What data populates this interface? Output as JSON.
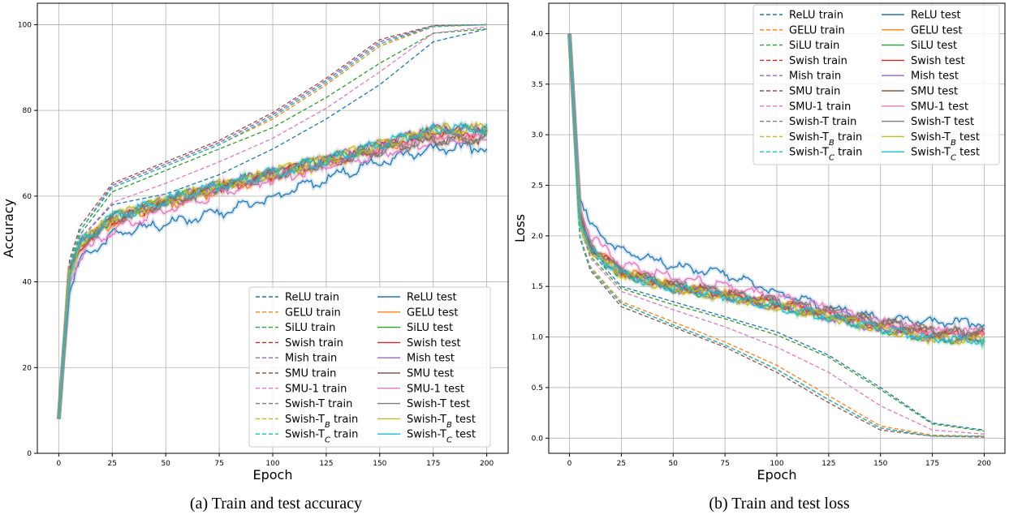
{
  "captions": {
    "a": "(a) Train and test accuracy",
    "b": "(b) Train and test loss"
  },
  "legend_labels": {
    "train": [
      "ReLU train",
      "GELU train",
      "SiLU train",
      "Swish train",
      "Mish train",
      "SMU train",
      "SMU-1 train",
      "Swish-T train",
      "Swish-T_B train",
      "Swish-T_C train"
    ],
    "test": [
      "ReLU test",
      "GELU test",
      "SiLU test",
      "Swish test",
      "Mish test",
      "SMU test",
      "SMU-1 test",
      "Swish-T test",
      "Swish-T_B test",
      "Swish-T_C test"
    ]
  },
  "colors": [
    "#1f77b4",
    "#ff7f0e",
    "#2ca02c",
    "#d62728",
    "#9467bd",
    "#8c564b",
    "#e377c2",
    "#7f7f7f",
    "#bcbd22",
    "#17becf"
  ],
  "chart_data": [
    {
      "type": "line",
      "xlabel": "Epoch",
      "ylabel": "Accuracy",
      "xlim": [
        -10,
        210
      ],
      "ylim": [
        0,
        105
      ],
      "xticks": [
        0,
        25,
        50,
        75,
        100,
        125,
        150,
        175,
        200
      ],
      "yticks": [
        0,
        20,
        40,
        60,
        80,
        100
      ],
      "grid": true,
      "legend": "lower-right",
      "series_x": [
        0,
        5,
        10,
        25,
        50,
        75,
        100,
        125,
        150,
        175,
        200
      ],
      "series": [
        {
          "name": "ReLU train",
          "style": "dashed",
          "values": [
            8,
            42,
            50,
            58,
            60.5,
            65,
            71,
            78,
            86,
            96,
            99
          ]
        },
        {
          "name": "GELU train",
          "style": "dashed",
          "values": [
            8,
            44,
            52,
            62,
            67,
            72,
            78,
            86,
            95,
            99.5,
            100
          ]
        },
        {
          "name": "SiLU train",
          "style": "dashed",
          "values": [
            8,
            43,
            51,
            61,
            66,
            71,
            76,
            83,
            91,
            98,
            99
          ]
        },
        {
          "name": "Swish train",
          "style": "dashed",
          "values": [
            8,
            44,
            52,
            62.5,
            67.5,
            72.5,
            79,
            87,
            96,
            99.7,
            100
          ]
        },
        {
          "name": "Mish train",
          "style": "dashed",
          "values": [
            8,
            44,
            52,
            62.5,
            67.5,
            72.5,
            79,
            87,
            96,
            99.7,
            100
          ]
        },
        {
          "name": "SMU train",
          "style": "dashed",
          "values": [
            8,
            45,
            53,
            63,
            68,
            73,
            79.5,
            87.5,
            96.5,
            99.8,
            100
          ]
        },
        {
          "name": "SMU-1 train",
          "style": "dashed",
          "values": [
            8,
            42,
            50,
            58.5,
            63,
            68,
            73.5,
            80.5,
            89,
            98,
            99.5
          ]
        },
        {
          "name": "Swish-T train",
          "style": "dashed",
          "values": [
            8,
            44,
            52,
            62,
            67,
            72,
            78.5,
            86.5,
            95.5,
            99.6,
            100
          ]
        },
        {
          "name": "Swish-T_B train",
          "style": "dashed",
          "values": [
            8,
            44,
            52,
            62,
            67,
            72,
            78.5,
            86.5,
            95.5,
            99.6,
            100
          ]
        },
        {
          "name": "Swish-T_C train",
          "style": "dashed",
          "values": [
            8,
            44,
            52,
            62,
            67,
            72,
            78.5,
            86.5,
            95.5,
            99.6,
            100
          ]
        },
        {
          "name": "ReLU test",
          "style": "solid",
          "values": [
            8,
            38,
            45,
            51,
            53.5,
            56,
            60,
            64,
            68,
            71,
            71.5
          ]
        },
        {
          "name": "GELU test",
          "style": "solid",
          "values": [
            8,
            42,
            48,
            54,
            58,
            61.5,
            64.5,
            67.5,
            71,
            74,
            74.5
          ]
        },
        {
          "name": "SiLU test",
          "style": "solid",
          "values": [
            8,
            42,
            49,
            55,
            59,
            62.5,
            65.5,
            68.5,
            72,
            75.5,
            75.5
          ]
        },
        {
          "name": "Swish test",
          "style": "solid",
          "values": [
            8,
            42,
            48.5,
            54.5,
            58.5,
            62,
            65,
            68,
            71.5,
            75,
            75
          ]
        },
        {
          "name": "Mish test",
          "style": "solid",
          "values": [
            8,
            42,
            49,
            55,
            59,
            62.5,
            65.5,
            68.5,
            72,
            75.5,
            75.5
          ]
        },
        {
          "name": "SMU test",
          "style": "solid",
          "values": [
            8,
            42,
            48.5,
            54.5,
            58.5,
            62,
            65,
            68,
            70.5,
            73,
            73.5
          ]
        },
        {
          "name": "SMU-1 test",
          "style": "solid",
          "values": [
            8,
            40,
            46,
            52,
            57,
            60.5,
            64,
            67,
            70,
            73,
            73.5
          ]
        },
        {
          "name": "Swish-T test",
          "style": "solid",
          "values": [
            8,
            42,
            48.5,
            54.5,
            58.5,
            62,
            65,
            68,
            70.5,
            73,
            73.5
          ]
        },
        {
          "name": "Swish-T_B test",
          "style": "solid",
          "values": [
            8,
            42,
            49,
            55,
            59,
            62.5,
            65.5,
            68.5,
            72,
            75.5,
            76
          ]
        },
        {
          "name": "Swish-T_C test",
          "style": "solid",
          "values": [
            8,
            42,
            49,
            55,
            59,
            62.5,
            65.5,
            68.5,
            72,
            75.5,
            76
          ]
        }
      ]
    },
    {
      "type": "line",
      "xlabel": "Epoch",
      "ylabel": "Loss",
      "xlim": [
        -10,
        210
      ],
      "ylim": [
        -0.15,
        4.3
      ],
      "xticks": [
        0,
        25,
        50,
        75,
        100,
        125,
        150,
        175,
        200
      ],
      "yticks": [
        0.0,
        0.5,
        1.0,
        1.5,
        2.0,
        2.5,
        3.0,
        3.5,
        4.0
      ],
      "grid": true,
      "legend": "upper-right",
      "series_x": [
        0,
        5,
        10,
        25,
        50,
        75,
        100,
        125,
        150,
        175,
        200
      ],
      "series": [
        {
          "name": "ReLU train",
          "style": "dashed",
          "values": [
            4.0,
            2.2,
            1.85,
            1.5,
            1.35,
            1.2,
            1.05,
            0.82,
            0.5,
            0.15,
            0.08
          ]
        },
        {
          "name": "GELU train",
          "style": "dashed",
          "values": [
            4.0,
            2.0,
            1.7,
            1.35,
            1.15,
            0.95,
            0.72,
            0.42,
            0.12,
            0.03,
            0.02
          ]
        },
        {
          "name": "SiLU train",
          "style": "dashed",
          "values": [
            4.0,
            2.1,
            1.8,
            1.48,
            1.32,
            1.18,
            1.02,
            0.8,
            0.48,
            0.14,
            0.07
          ]
        },
        {
          "name": "Swish train",
          "style": "dashed",
          "values": [
            4.0,
            2.0,
            1.68,
            1.33,
            1.12,
            0.92,
            0.68,
            0.38,
            0.1,
            0.02,
            0.02
          ]
        },
        {
          "name": "Mish train",
          "style": "dashed",
          "values": [
            4.0,
            2.0,
            1.68,
            1.33,
            1.12,
            0.92,
            0.68,
            0.38,
            0.1,
            0.02,
            0.02
          ]
        },
        {
          "name": "SMU train",
          "style": "dashed",
          "values": [
            4.0,
            1.98,
            1.66,
            1.3,
            1.1,
            0.9,
            0.65,
            0.35,
            0.08,
            0.02,
            0.01
          ]
        },
        {
          "name": "SMU-1 train",
          "style": "dashed",
          "values": [
            4.0,
            2.1,
            1.78,
            1.45,
            1.27,
            1.1,
            0.9,
            0.65,
            0.32,
            0.08,
            0.04
          ]
        },
        {
          "name": "Swish-T train",
          "style": "dashed",
          "values": [
            4.0,
            2.0,
            1.68,
            1.33,
            1.12,
            0.92,
            0.68,
            0.38,
            0.1,
            0.02,
            0.02
          ]
        },
        {
          "name": "Swish-T_B train",
          "style": "dashed",
          "values": [
            4.0,
            2.0,
            1.68,
            1.33,
            1.12,
            0.92,
            0.68,
            0.38,
            0.1,
            0.02,
            0.02
          ]
        },
        {
          "name": "Swish-T_C train",
          "style": "dashed",
          "values": [
            4.0,
            2.0,
            1.68,
            1.33,
            1.12,
            0.92,
            0.68,
            0.38,
            0.1,
            0.02,
            0.02
          ]
        },
        {
          "name": "ReLU test",
          "style": "solid",
          "values": [
            4.0,
            2.4,
            2.1,
            1.85,
            1.7,
            1.62,
            1.45,
            1.28,
            1.18,
            1.15,
            1.14
          ]
        },
        {
          "name": "GELU test",
          "style": "solid",
          "values": [
            4.0,
            2.2,
            1.9,
            1.65,
            1.5,
            1.42,
            1.33,
            1.22,
            1.1,
            1.02,
            1.0
          ]
        },
        {
          "name": "SiLU test",
          "style": "solid",
          "values": [
            4.0,
            2.15,
            1.85,
            1.62,
            1.48,
            1.4,
            1.3,
            1.2,
            1.08,
            0.98,
            0.97
          ]
        },
        {
          "name": "Swish test",
          "style": "solid",
          "values": [
            4.0,
            2.2,
            1.9,
            1.65,
            1.5,
            1.42,
            1.33,
            1.22,
            1.1,
            1.02,
            1.02
          ]
        },
        {
          "name": "Mish test",
          "style": "solid",
          "values": [
            4.0,
            2.2,
            1.88,
            1.63,
            1.48,
            1.4,
            1.31,
            1.2,
            1.08,
            0.99,
            0.98
          ]
        },
        {
          "name": "SMU test",
          "style": "solid",
          "values": [
            4.0,
            2.2,
            1.9,
            1.65,
            1.52,
            1.44,
            1.35,
            1.25,
            1.15,
            1.06,
            1.05
          ]
        },
        {
          "name": "SMU-1 test",
          "style": "solid",
          "values": [
            4.0,
            2.3,
            2.0,
            1.72,
            1.6,
            1.5,
            1.4,
            1.28,
            1.15,
            1.06,
            1.05
          ]
        },
        {
          "name": "Swish-T test",
          "style": "solid",
          "values": [
            4.0,
            2.2,
            1.9,
            1.65,
            1.52,
            1.44,
            1.35,
            1.25,
            1.15,
            1.06,
            1.05
          ]
        },
        {
          "name": "Swish-T_B test",
          "style": "solid",
          "values": [
            4.0,
            2.15,
            1.85,
            1.62,
            1.48,
            1.4,
            1.3,
            1.2,
            1.08,
            0.98,
            0.97
          ]
        },
        {
          "name": "Swish-T_C test",
          "style": "solid",
          "values": [
            4.0,
            2.15,
            1.85,
            1.62,
            1.48,
            1.4,
            1.3,
            1.2,
            1.08,
            0.98,
            0.97
          ]
        }
      ]
    }
  ]
}
